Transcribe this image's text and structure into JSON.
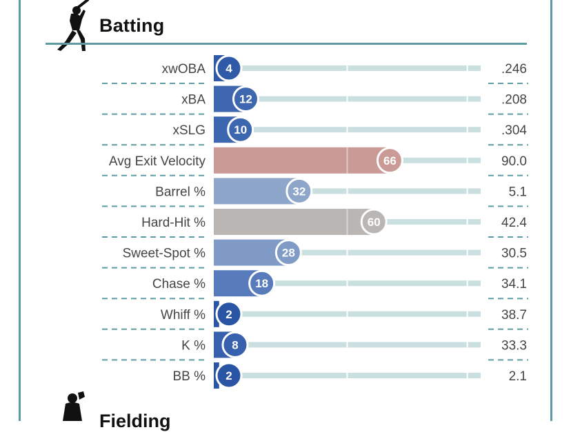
{
  "section": {
    "title": "Batting",
    "icon": "batter-silhouette-icon",
    "next_title": "Fielding",
    "next_icon": "fielder-silhouette-icon",
    "accent": "#5b9ba1"
  },
  "chart_data": {
    "type": "bar",
    "title": "Batting",
    "xlim": [
      0,
      100
    ],
    "metrics": [
      {
        "label": "xwOBA",
        "percentile": 4,
        "value": ".246",
        "color": "#2f5aa8"
      },
      {
        "label": "xBA",
        "percentile": 12,
        "value": ".208",
        "color": "#3e67b0"
      },
      {
        "label": "xSLG",
        "percentile": 10,
        "value": ".304",
        "color": "#3d66b0"
      },
      {
        "label": "Avg Exit Velocity",
        "percentile": 66,
        "value": "90.0",
        "color": "#c99a96"
      },
      {
        "label": "Barrel %",
        "percentile": 32,
        "value": "5.1",
        "color": "#8ea6c9"
      },
      {
        "label": "Hard-Hit %",
        "percentile": 60,
        "value": "42.4",
        "color": "#b9b6b3"
      },
      {
        "label": "Sweet-Spot %",
        "percentile": 28,
        "value": "30.5",
        "color": "#7f9bc6"
      },
      {
        "label": "Chase %",
        "percentile": 18,
        "value": "34.1",
        "color": "#587cbb"
      },
      {
        "label": "Whiff %",
        "percentile": 2,
        "value": "38.7",
        "color": "#2a55a5"
      },
      {
        "label": "K %",
        "percentile": 8,
        "value": "33.3",
        "color": "#3761ad"
      },
      {
        "label": "BB %",
        "percentile": 2,
        "value": "2.1",
        "color": "#2a55a5"
      }
    ],
    "track_color": "#c9dfe0"
  }
}
